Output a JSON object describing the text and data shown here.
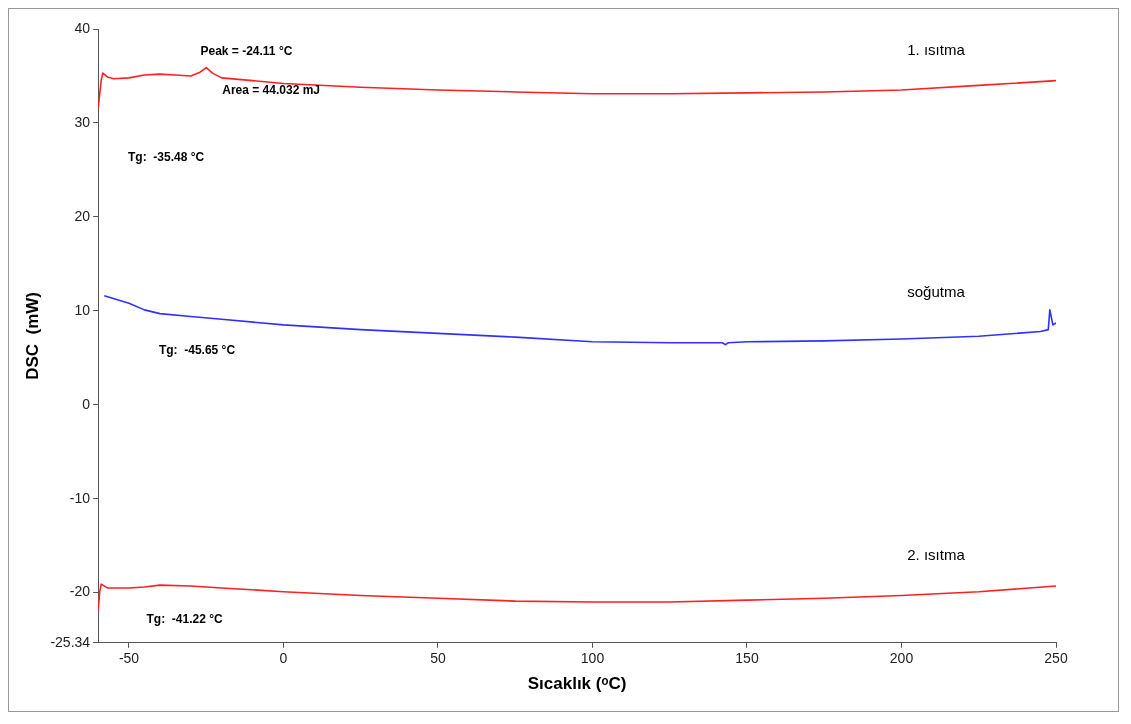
{
  "chart_data": {
    "type": "line",
    "xlabel": "Sıcaklık (ᵒC)",
    "ylabel": "DSC  (mW)",
    "xlim": [
      -60,
      250
    ],
    "xticks": [
      -50,
      0,
      50,
      100,
      150,
      200,
      250
    ],
    "ylim": [
      -25.34,
      40
    ],
    "yticks": [
      -25.34,
      -20,
      -10,
      0,
      10,
      20,
      30,
      40
    ],
    "grid": false,
    "legend": false,
    "marker": "none",
    "line_style": "solid",
    "series": [
      {
        "name": "1. ısıtma",
        "color": "#ff2020",
        "x": [
          -60,
          -59,
          -58.5,
          -57,
          -55,
          -50,
          -45,
          -40,
          -35,
          -30,
          -27,
          -25,
          -23,
          -20,
          -10,
          0,
          25,
          50,
          75,
          100,
          125,
          150,
          175,
          200,
          225,
          250
        ],
        "values": [
          31.5,
          34.5,
          35.3,
          34.9,
          34.7,
          34.8,
          35.1,
          35.2,
          35.1,
          35.0,
          35.4,
          35.9,
          35.3,
          34.8,
          34.5,
          34.2,
          33.8,
          33.5,
          33.3,
          33.1,
          33.1,
          33.2,
          33.3,
          33.5,
          34.0,
          34.5
        ]
      },
      {
        "name": "soğutma",
        "color": "#3030ff",
        "x": [
          -58,
          -50,
          -45,
          -40,
          -30,
          -20,
          0,
          25,
          50,
          75,
          100,
          125,
          142,
          143,
          144,
          150,
          175,
          200,
          225,
          245,
          247.5,
          248,
          249,
          250
        ],
        "values": [
          11.6,
          10.8,
          10.1,
          9.7,
          9.4,
          9.1,
          8.5,
          8.0,
          7.6,
          7.2,
          6.7,
          6.6,
          6.6,
          6.4,
          6.6,
          6.7,
          6.8,
          7.0,
          7.3,
          7.8,
          8.0,
          10.1,
          8.5,
          8.7
        ]
      },
      {
        "name": "2. ısıtma",
        "color": "#ff2020",
        "x": [
          -60,
          -59.5,
          -59,
          -57,
          -50,
          -45,
          -40,
          -30,
          -20,
          0,
          25,
          50,
          75,
          100,
          125,
          150,
          175,
          200,
          225,
          250
        ],
        "values": [
          -22.0,
          -20.0,
          -19.1,
          -19.5,
          -19.5,
          -19.4,
          -19.2,
          -19.3,
          -19.5,
          -19.9,
          -20.3,
          -20.6,
          -20.9,
          -21.0,
          -21.0,
          -20.8,
          -20.6,
          -20.3,
          -19.9,
          -19.3
        ]
      }
    ],
    "annotations": [
      "Peak = -24.11 °C",
      "Area = 44.032 mJ",
      "Tg:  -35.48 °C",
      "Tg:  -45.65 °C",
      "Tg:  -41.22 °C"
    ]
  }
}
